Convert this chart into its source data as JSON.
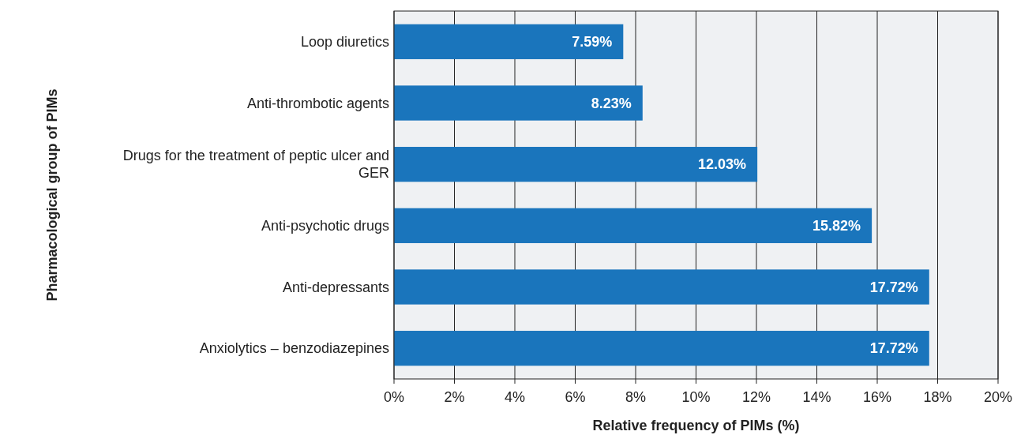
{
  "chart_data": {
    "type": "bar",
    "orientation": "horizontal",
    "xlabel": "Relative frequency of PIMs (%)",
    "ylabel": "Pharmacological group of PIMs",
    "categories": [
      "Loop diuretics",
      "Anti-thrombotic agents",
      "Drugs for the treatment of peptic ulcer and GER",
      "Anti-psychotic drugs",
      "Anti-depressants",
      "Anxiolytics – benzodiazepines"
    ],
    "values": [
      7.59,
      8.23,
      12.03,
      15.82,
      17.72,
      17.72
    ],
    "value_labels": [
      "7.59%",
      "8.23%",
      "12.03%",
      "15.82%",
      "17.72%",
      "17.72%"
    ],
    "color": "#1a75bc",
    "xlim": [
      0,
      20
    ],
    "xticks": [
      {
        "value": 0,
        "label": "0%"
      },
      {
        "value": 2,
        "label": "2%"
      },
      {
        "value": 4,
        "label": "4%"
      },
      {
        "value": 6,
        "label": "6%"
      },
      {
        "value": 8,
        "label": "8%"
      },
      {
        "value": 10,
        "label": "10%"
      },
      {
        "value": 12,
        "label": "12%"
      },
      {
        "value": 14,
        "label": "14%"
      },
      {
        "value": 16,
        "label": "16%"
      },
      {
        "value": 18,
        "label": "18%"
      },
      {
        "value": 20,
        "label": "20%"
      }
    ],
    "grid": "x"
  }
}
